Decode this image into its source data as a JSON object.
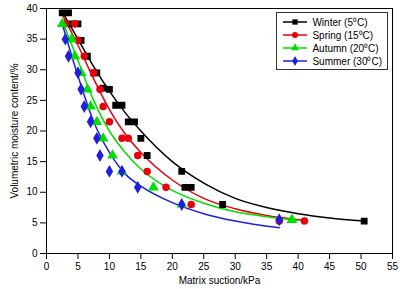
{
  "chart_data": {
    "type": "scatter",
    "x_label": "Matrix suction/kPa",
    "y_label": "Volumetric moisture content/%",
    "xlim": [
      0,
      55
    ],
    "xticks": [
      0,
      5,
      10,
      15,
      20,
      25,
      30,
      35,
      40,
      45,
      50,
      55
    ],
    "ylim": [
      0,
      40
    ],
    "yticks": [
      0,
      5,
      10,
      15,
      20,
      25,
      30,
      35,
      40
    ],
    "grid": false,
    "legend": "top-right",
    "series": [
      {
        "name": "Winter (5⁰C)",
        "color": "#000000",
        "marker": "square",
        "x": [
          2.5,
          3.5,
          4,
          5,
          5.5,
          6.5,
          7.5,
          8,
          9,
          10,
          11,
          12,
          13,
          14,
          15,
          16,
          21.5,
          22,
          23,
          28,
          50.5
        ],
        "values": [
          39.3,
          39.3,
          37.5,
          37.5,
          34.8,
          32.2,
          29.5,
          29.5,
          27,
          26.8,
          24.2,
          24.2,
          21.5,
          21.5,
          18.8,
          16,
          13.4,
          10.8,
          10.8,
          8,
          5.3
        ],
        "fit": {
          "x": [
            2.5,
            5,
            7.5,
            10,
            12.5,
            15,
            20,
            25,
            30,
            35,
            40,
            45,
            50.5
          ],
          "values": [
            39.5,
            35,
            30.5,
            26.5,
            23,
            20,
            15,
            11.5,
            9,
            7.5,
            6.5,
            5.8,
            5.3
          ]
        }
      },
      {
        "name": "Spring (15⁰C)",
        "color": "#e8000b",
        "marker": "circle",
        "x": [
          3,
          4.5,
          5,
          6,
          7.5,
          8.5,
          9,
          10,
          12,
          13,
          14.5,
          16,
          19,
          23,
          37,
          41
        ],
        "values": [
          37.5,
          37.5,
          34.8,
          32.2,
          29.5,
          26.8,
          24,
          21.5,
          18.8,
          18.8,
          16,
          13.4,
          10.8,
          8,
          5.3,
          5.3
        ],
        "fit": {
          "x": [
            2.5,
            5,
            7.5,
            10,
            12.5,
            15,
            20,
            25,
            30,
            35,
            41
          ],
          "values": [
            39,
            34,
            28.5,
            23.5,
            19.5,
            16.5,
            12,
            9,
            7.3,
            6.2,
            5.4
          ]
        }
      },
      {
        "name": "Autumn (20⁰C)",
        "color": "#00e000",
        "marker": "triangle",
        "x": [
          2.5,
          4,
          4.5,
          5.5,
          6.5,
          7,
          8,
          9,
          10.5,
          12,
          17,
          21.5,
          39
        ],
        "values": [
          37.5,
          35,
          32.2,
          29.5,
          26.8,
          24,
          21.5,
          18.8,
          16,
          13.4,
          10.8,
          8,
          5.5
        ],
        "fit": {
          "x": [
            2.5,
            5,
            7.5,
            10,
            12.5,
            15,
            20,
            25,
            30,
            35,
            40
          ],
          "values": [
            38,
            31.5,
            25,
            20,
            16.5,
            13.8,
            10.3,
            8.2,
            6.8,
            6,
            5.4
          ]
        }
      },
      {
        "name": "Summer (30⁰C)",
        "color": "#1f1fe0",
        "marker": "diamond",
        "x": [
          3,
          3.5,
          5,
          5.5,
          6,
          7,
          8,
          8.5,
          10,
          12,
          14.5,
          21.5,
          37
        ],
        "values": [
          35,
          32.2,
          29.5,
          26.8,
          24,
          21.5,
          18.8,
          16,
          13.4,
          13.4,
          10.8,
          8,
          5.5
        ],
        "fit": {
          "x": [
            2.5,
            5,
            7.5,
            10,
            12.5,
            15,
            20,
            25,
            30,
            37
          ],
          "values": [
            37.5,
            29,
            21.5,
            16.5,
            13,
            11,
            8.3,
            6.5,
            5.3,
            4.2
          ]
        }
      }
    ]
  }
}
